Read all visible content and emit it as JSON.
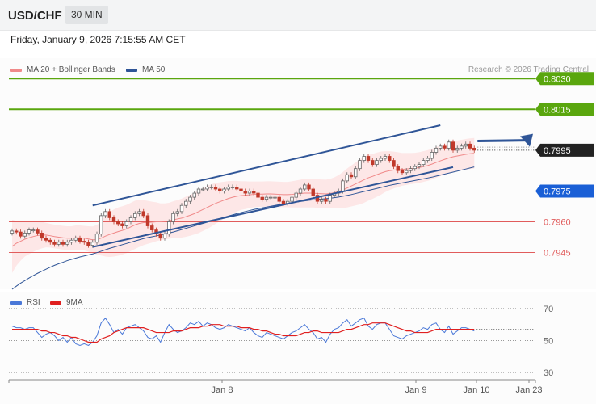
{
  "header": {
    "symbol": "USD/CHF",
    "timeframe": "30 MIN",
    "datetime": "Friday, January 9, 2026 7:15:55 AM CET"
  },
  "legend": {
    "ma20": {
      "label": "MA 20 + Bollinger Bands",
      "color": "#f08a8a"
    },
    "ma50": {
      "label": "MA 50",
      "color": "#2f5597"
    },
    "copyright": "Research © 2026 Trading Central"
  },
  "rsi_legend": {
    "rsi": {
      "label": "RSI",
      "color": "#4a78d8"
    },
    "ma9": {
      "label": "9MA",
      "color": "#e02020"
    }
  },
  "chart_data": [
    {
      "type": "candlestick",
      "ylim": [
        0.7927,
        0.804
      ],
      "levels": [
        {
          "value": 0.803,
          "label": "0.8030",
          "kind": "resistance",
          "color": "#5aa60e"
        },
        {
          "value": 0.8015,
          "label": "0.8015",
          "kind": "resistance",
          "color": "#5aa60e"
        },
        {
          "value": 0.7995,
          "label": "0.7995",
          "kind": "last-price",
          "color": "#222222"
        },
        {
          "value": 0.7975,
          "label": "0.7975",
          "kind": "pivot",
          "color": "#1a5fd6"
        },
        {
          "value": 0.796,
          "label": "0.7960",
          "kind": "support",
          "color": "#e15c5c"
        },
        {
          "value": 0.7945,
          "label": "0.7945",
          "kind": "support",
          "color": "#e15c5c"
        }
      ],
      "x_ticks": [
        "Jan 8",
        "Jan 9",
        "Jan 10",
        "Jan 23"
      ],
      "close": [
        0.79555,
        0.7955,
        0.7953,
        0.79545,
        0.7956,
        0.7956,
        0.79545,
        0.7952,
        0.7951,
        0.795,
        0.7949,
        0.795,
        0.7949,
        0.795,
        0.7951,
        0.7952,
        0.79505,
        0.795,
        0.79485,
        0.795,
        0.7954,
        0.7963,
        0.7965,
        0.7962,
        0.796,
        0.7959,
        0.7958,
        0.796,
        0.7962,
        0.7964,
        0.7965,
        0.7963,
        0.7958,
        0.7956,
        0.7954,
        0.7952,
        0.7954,
        0.796,
        0.7964,
        0.7965,
        0.7968,
        0.797,
        0.7972,
        0.7974,
        0.7976,
        0.7976,
        0.7977,
        0.7977,
        0.7976,
        0.7975,
        0.7976,
        0.7977,
        0.7977,
        0.7976,
        0.7975,
        0.7974,
        0.7975,
        0.7974,
        0.7972,
        0.7971,
        0.7972,
        0.7972,
        0.7972,
        0.797,
        0.7969,
        0.797,
        0.7972,
        0.7974,
        0.7976,
        0.7978,
        0.7976,
        0.7973,
        0.797,
        0.7971,
        0.797,
        0.7973,
        0.7974,
        0.7975,
        0.798,
        0.7983,
        0.7982,
        0.7986,
        0.799,
        0.7992,
        0.799,
        0.7988,
        0.799,
        0.7991,
        0.7992,
        0.799,
        0.7987,
        0.7985,
        0.7984,
        0.7985,
        0.7986,
        0.7987,
        0.7988,
        0.799,
        0.7991,
        0.7994,
        0.7996,
        0.7997,
        0.7996,
        0.7999,
        0.7995,
        0.7996,
        0.7997,
        0.7998,
        0.7996,
        0.7995
      ],
      "ma20": [
        0.7948,
        0.79495,
        0.79505,
        0.79515,
        0.79522,
        0.79528,
        0.79533,
        0.79535,
        0.79535,
        0.79532,
        0.79528,
        0.79525,
        0.79522,
        0.7952,
        0.7952,
        0.79522,
        0.79522,
        0.7952,
        0.79516,
        0.79512,
        0.79512,
        0.7952,
        0.7953,
        0.79538,
        0.79545,
        0.79552,
        0.79558,
        0.79565,
        0.79575,
        0.79585,
        0.79592,
        0.79596,
        0.79597,
        0.79598,
        0.796,
        0.796,
        0.79602,
        0.79605,
        0.7961,
        0.79614,
        0.79618,
        0.79625,
        0.79632,
        0.7964,
        0.7965,
        0.7966,
        0.7967,
        0.7968,
        0.7969,
        0.79698,
        0.79706,
        0.79714,
        0.7972,
        0.79725,
        0.79728,
        0.7973,
        0.79732,
        0.79734,
        0.79735,
        0.79735,
        0.79736,
        0.79736,
        0.79735,
        0.79734,
        0.79733,
        0.79733,
        0.79734,
        0.79736,
        0.79738,
        0.7974,
        0.7974,
        0.7974,
        0.79738,
        0.79737,
        0.79736,
        0.79738,
        0.79742,
        0.79748,
        0.79755,
        0.79765,
        0.79775,
        0.79785,
        0.79795,
        0.79805,
        0.79815,
        0.79822,
        0.7983,
        0.79838,
        0.79845,
        0.7985,
        0.79853,
        0.79855,
        0.79856,
        0.79858,
        0.7986,
        0.79862,
        0.79865,
        0.7987,
        0.79875,
        0.79882,
        0.7989,
        0.79898,
        0.79905,
        0.79912,
        0.79918,
        0.79922,
        0.79926,
        0.7993,
        0.79933,
        0.79935
      ],
      "ma50": [
        0.7927,
        0.79285,
        0.793,
        0.79312,
        0.79325,
        0.79337,
        0.79348,
        0.79358,
        0.79368,
        0.79378,
        0.79387,
        0.79395,
        0.79402,
        0.7941,
        0.79416,
        0.79422,
        0.79428,
        0.79433,
        0.79438,
        0.79443,
        0.79449,
        0.79456,
        0.79463,
        0.7947,
        0.79476,
        0.79482,
        0.79488,
        0.79494,
        0.795,
        0.79506,
        0.79512,
        0.79518,
        0.79523,
        0.79527,
        0.79531,
        0.79535,
        0.7954,
        0.79545,
        0.7955,
        0.79556,
        0.79562,
        0.79568,
        0.79574,
        0.7958,
        0.79586,
        0.79592,
        0.79598,
        0.79604,
        0.7961,
        0.79616,
        0.79622,
        0.79628,
        0.79634,
        0.7964,
        0.79645,
        0.7965,
        0.79655,
        0.7966,
        0.79664,
        0.79668,
        0.79672,
        0.79676,
        0.7968,
        0.79684,
        0.79687,
        0.7969,
        0.79693,
        0.79696,
        0.79699,
        0.79702,
        0.79705,
        0.79707,
        0.79709,
        0.79711,
        0.79713,
        0.79715,
        0.79718,
        0.79721,
        0.79725,
        0.79729,
        0.79733,
        0.79738,
        0.79743,
        0.79748,
        0.79753,
        0.79758,
        0.79763,
        0.79768,
        0.79773,
        0.79778,
        0.79782,
        0.79786,
        0.7979,
        0.79794,
        0.79798,
        0.79802,
        0.79806,
        0.7981,
        0.79814,
        0.79818,
        0.79823,
        0.79828,
        0.79833,
        0.79838,
        0.79843,
        0.79848,
        0.79853,
        0.79858,
        0.79863,
        0.79868
      ],
      "bb_width": [
        0.0013,
        0.0011,
        0.00095,
        0.00085,
        0.0008,
        0.00075,
        0.0007,
        0.00065,
        0.0006,
        0.00058,
        0.00058,
        0.00058,
        0.00058,
        0.00058,
        0.00058,
        0.0006,
        0.0006,
        0.0006,
        0.00062,
        0.00065,
        0.00072,
        0.00085,
        0.001,
        0.0011,
        0.00115,
        0.00118,
        0.00118,
        0.00118,
        0.00118,
        0.00118,
        0.00115,
        0.0011,
        0.00105,
        0.001,
        0.00095,
        0.0009,
        0.00088,
        0.00088,
        0.0009,
        0.00092,
        0.00095,
        0.00098,
        0.001,
        0.00102,
        0.00105,
        0.00105,
        0.00105,
        0.00103,
        0.001,
        0.00095,
        0.0009,
        0.00085,
        0.0008,
        0.00075,
        0.0007,
        0.00068,
        0.00065,
        0.00063,
        0.00062,
        0.00062,
        0.00062,
        0.00062,
        0.00062,
        0.00062,
        0.00062,
        0.00062,
        0.00064,
        0.00066,
        0.00068,
        0.0007,
        0.0007,
        0.0007,
        0.0007,
        0.0007,
        0.0007,
        0.00072,
        0.00075,
        0.0008,
        0.00088,
        0.00095,
        0.001,
        0.00105,
        0.0011,
        0.00112,
        0.00112,
        0.0011,
        0.00108,
        0.00105,
        0.001,
        0.00095,
        0.0009,
        0.00085,
        0.0008,
        0.00078,
        0.00076,
        0.00075,
        0.00075,
        0.00075,
        0.00075,
        0.00075,
        0.00075,
        0.00075,
        0.00075,
        0.00075,
        0.00075,
        0.00075,
        0.00075,
        0.00075,
        0.00075,
        0.00075
      ],
      "channel": {
        "upper": [
          [
            0.79607,
            0.7968
          ],
          [
            0.79995,
            0.80072
          ]
        ],
        "lower": [
          [
            0.79477,
            0.7954
          ],
          [
            0.79867,
            0.79945
          ]
        ],
        "upper_idx": [
          19,
          101
        ],
        "lower_idx": [
          19,
          104
        ],
        "color": "#2f5597"
      },
      "projection": {
        "from_value": 0.79995,
        "to_value": 0.8003,
        "color": "#2f5597"
      }
    },
    {
      "type": "line",
      "name": "RSI",
      "ylim": [
        20,
        80
      ],
      "y_ticks": [
        70,
        50,
        30
      ],
      "rsi": [
        59,
        58,
        58,
        57,
        58,
        58,
        55,
        52,
        54,
        55,
        53,
        50,
        52,
        49,
        52,
        48,
        47,
        48,
        47,
        49,
        53,
        61,
        64,
        60,
        55,
        57,
        54,
        58,
        59,
        60,
        58,
        56,
        52,
        51,
        53,
        49,
        55,
        60,
        57,
        55,
        56,
        58,
        61,
        60,
        62,
        59,
        61,
        60,
        58,
        57,
        58,
        60,
        59,
        58,
        57,
        56,
        58,
        55,
        53,
        52,
        55,
        54,
        53,
        52,
        51,
        53,
        55,
        56,
        58,
        60,
        57,
        55,
        51,
        52,
        49,
        54,
        57,
        58,
        61,
        63,
        59,
        61,
        63,
        64,
        59,
        57,
        60,
        61,
        61,
        57,
        53,
        52,
        51,
        53,
        54,
        55,
        56,
        58,
        57,
        60,
        61,
        57,
        55,
        59,
        54,
        56,
        58,
        58,
        57,
        56
      ],
      "ma9": [
        57,
        57,
        57,
        57,
        57,
        57,
        57,
        56,
        56,
        55,
        55,
        54,
        53,
        53,
        52,
        52,
        51,
        50,
        49,
        49,
        49,
        51,
        52,
        53,
        55,
        56,
        57,
        58,
        58,
        58,
        58,
        58,
        57,
        56,
        55,
        55,
        55,
        55,
        56,
        56,
        56,
        57,
        58,
        58,
        58,
        59,
        59,
        60,
        60,
        60,
        59,
        59,
        59,
        59,
        58,
        58,
        58,
        57,
        57,
        56,
        56,
        55,
        54,
        54,
        53,
        53,
        53,
        53,
        54,
        55,
        55,
        56,
        56,
        55,
        55,
        55,
        55,
        55,
        56,
        57,
        57,
        58,
        59,
        60,
        60,
        61,
        61,
        61,
        61,
        60,
        59,
        58,
        57,
        56,
        56,
        55,
        55,
        55,
        55,
        56,
        57,
        57,
        57,
        57,
        57,
        57,
        57,
        57,
        57,
        57
      ]
    }
  ]
}
